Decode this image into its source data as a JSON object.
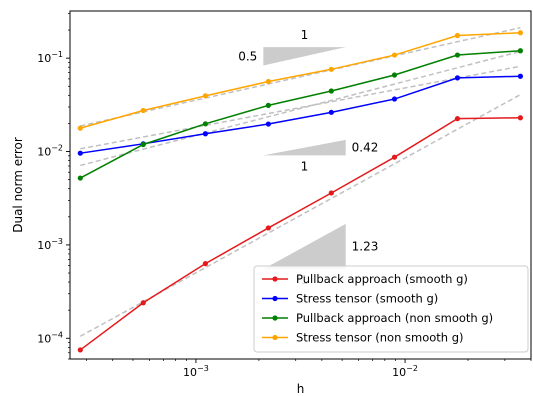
{
  "chart_data": {
    "type": "line",
    "title": "",
    "xlabel": "h",
    "ylabel": "Dual norm error",
    "xscale": "log",
    "yscale": "log",
    "xlim": [
      0.00025,
      0.04
    ],
    "ylim": [
      6e-05,
      0.32
    ],
    "xticks": [
      {
        "value": 0.001,
        "label_base": "10",
        "label_exp": "−3"
      },
      {
        "value": 0.01,
        "label_base": "10",
        "label_exp": "−2"
      }
    ],
    "yticks": [
      {
        "value": 0.0001,
        "label_base": "10",
        "label_exp": "−4"
      },
      {
        "value": 0.001,
        "label_base": "10",
        "label_exp": "−3"
      },
      {
        "value": 0.01,
        "label_base": "10",
        "label_exp": "−2"
      },
      {
        "value": 0.1,
        "label_base": "10",
        "label_exp": "−1"
      }
    ],
    "x": [
      0.00028,
      0.00056,
      0.00111,
      0.00222,
      0.00444,
      0.0089,
      0.0178,
      0.0356
    ],
    "series": [
      {
        "name": "Pullback approach (smooth g)",
        "color": "#e41a1c",
        "values": [
          7.5e-05,
          0.00024,
          0.00063,
          0.00152,
          0.0036,
          0.0087,
          0.0225,
          0.023
        ]
      },
      {
        "name": "Stress tensor (smooth g)",
        "color": "#0000ff",
        "values": [
          0.0096,
          0.0121,
          0.0155,
          0.0197,
          0.0263,
          0.0365,
          0.0615,
          0.064
        ]
      },
      {
        "name": "Pullback approach (non smooth g)",
        "color": "#008000",
        "values": [
          0.0052,
          0.0119,
          0.0198,
          0.0312,
          0.0445,
          0.066,
          0.108,
          0.12
        ]
      },
      {
        "name": "Stress tensor (non smooth g)",
        "color": "#ffa500",
        "values": [
          0.0178,
          0.0275,
          0.0395,
          0.0562,
          0.076,
          0.108,
          0.175,
          0.187
        ]
      }
    ],
    "reference_lines": [
      {
        "slope": 1.23,
        "anchor_x": 0.00028,
        "anchor_y": 0.000105
      },
      {
        "slope": 0.42,
        "anchor_x": 0.00028,
        "anchor_y": 0.0107
      },
      {
        "slope": 0.58,
        "anchor_x": 0.00028,
        "anchor_y": 0.0071
      },
      {
        "slope": 0.5,
        "anchor_x": 0.00028,
        "anchor_y": 0.0188
      }
    ],
    "triangles": [
      {
        "x0": 0.0021,
        "x1": 0.0052,
        "y_low": 0.0835,
        "slope": 0.5,
        "run_label": "1",
        "slope_label": "0.5",
        "orientation": "upper"
      },
      {
        "x0": 0.0021,
        "x1": 0.0052,
        "y_low": 0.0091,
        "slope": 0.42,
        "run_label": "1",
        "slope_label": "0.42",
        "orientation": "lower"
      },
      {
        "x0": 0.0021,
        "x1": 0.0052,
        "y_low": 0.00055,
        "slope": 1.23,
        "run_label": "1",
        "slope_label": "1.23",
        "orientation": "lower"
      }
    ],
    "legend": {
      "position": "bottom-right"
    },
    "grid": false,
    "reference_color": "#c0c0c0",
    "triangle_color": "#cccccc"
  }
}
